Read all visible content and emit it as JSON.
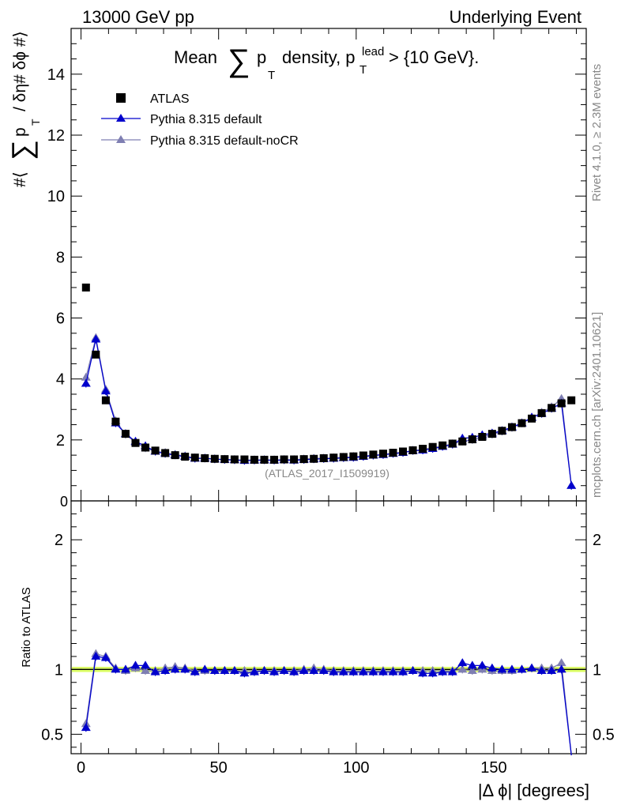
{
  "header": {
    "left": "13000 GeV pp",
    "right": "Underlying Event"
  },
  "side": {
    "rivet": "Rivet 4.1.0, ≥ 2.3M events",
    "mcplots": "mcplots.cern.ch [arXiv:2401.10621]"
  },
  "analysis_id": "(ATLAS_2017_I1509919)",
  "colors": {
    "data": "#000000",
    "pythia_default": "#0000cc",
    "pythia_nocr": "#7f7fb2",
    "band": "#ddff66"
  },
  "chart_data": {
    "type": "line",
    "title": {
      "pre": "Mean",
      "sum": "∑",
      "p": "p",
      "p_sub": "T",
      "mid": "density, p",
      "lead": "lead",
      "lead_sub": "T",
      "post": "> {10 GeV}."
    },
    "ylabel": {
      "a": "#⟨",
      "sum": "∑",
      "p": "p",
      "p_sub": "T",
      "b": "/ δη# δϕ #⟩"
    },
    "ratio_ylabel": "Ratio to ATLAS",
    "xlabel": "|Δ ϕ| [degrees]",
    "xlim": [
      -3.6,
      183.6
    ],
    "ylim": [
      0,
      15.5
    ],
    "ratio_ylim": [
      0.35,
      2.3
    ],
    "xticks": [
      0,
      50,
      100,
      150
    ],
    "yticks": [
      2,
      4,
      6,
      8,
      10,
      12,
      14
    ],
    "ytick_labels": [
      "2",
      "4",
      "6",
      "8",
      "10",
      "12",
      "14"
    ],
    "ytick_partial_label": "0",
    "ratio_yticks": [
      0.5,
      1,
      2
    ],
    "ratio_ytick_labels": [
      "0.5",
      "1",
      "2"
    ],
    "legend": {
      "position": "top-left",
      "entries": [
        "ATLAS",
        "Pythia 8.315 default",
        "Pythia 8.315 default-noCR"
      ]
    },
    "x": [
      1.8,
      5.4,
      9,
      12.6,
      16.2,
      19.8,
      23.4,
      27,
      30.6,
      34.2,
      37.8,
      41.4,
      45,
      48.6,
      52.2,
      55.8,
      59.4,
      63,
      66.6,
      70.2,
      73.8,
      77.4,
      81,
      84.6,
      88.2,
      91.8,
      95.4,
      99,
      102.6,
      106.2,
      109.8,
      113.4,
      117,
      120.6,
      124.2,
      127.8,
      131.4,
      135,
      138.6,
      142.2,
      145.8,
      149.4,
      153,
      156.6,
      160.2,
      163.8,
      167.4,
      171,
      174.6,
      178.2
    ],
    "series": [
      {
        "name": "ATLAS",
        "values": [
          7.0,
          4.8,
          3.3,
          2.6,
          2.2,
          1.9,
          1.75,
          1.65,
          1.57,
          1.5,
          1.45,
          1.42,
          1.4,
          1.38,
          1.37,
          1.36,
          1.36,
          1.35,
          1.35,
          1.35,
          1.36,
          1.36,
          1.37,
          1.38,
          1.4,
          1.42,
          1.44,
          1.46,
          1.49,
          1.52,
          1.55,
          1.58,
          1.62,
          1.66,
          1.71,
          1.77,
          1.82,
          1.88,
          1.95,
          2.02,
          2.1,
          2.2,
          2.3,
          2.42,
          2.55,
          2.7,
          2.88,
          3.05,
          3.2,
          3.3
        ]
      },
      {
        "name": "Pythia 8.315 default",
        "values": [
          3.85,
          5.3,
          3.6,
          2.55,
          2.2,
          1.95,
          1.8,
          1.62,
          1.55,
          1.5,
          1.45,
          1.39,
          1.4,
          1.37,
          1.35,
          1.34,
          1.32,
          1.33,
          1.34,
          1.33,
          1.34,
          1.33,
          1.35,
          1.37,
          1.38,
          1.39,
          1.41,
          1.42,
          1.45,
          1.49,
          1.51,
          1.55,
          1.58,
          1.65,
          1.66,
          1.71,
          1.78,
          1.85,
          2.05,
          2.08,
          2.16,
          2.22,
          2.3,
          2.42,
          2.55,
          2.74,
          2.86,
          3.03,
          3.2,
          0.5
        ]
      },
      {
        "name": "Pythia 8.315 default-noCR",
        "values": [
          4.05,
          5.35,
          3.65,
          2.62,
          2.18,
          1.92,
          1.73,
          1.63,
          1.58,
          1.52,
          1.47,
          1.41,
          1.39,
          1.37,
          1.36,
          1.35,
          1.34,
          1.34,
          1.34,
          1.34,
          1.35,
          1.35,
          1.37,
          1.39,
          1.4,
          1.41,
          1.43,
          1.45,
          1.47,
          1.5,
          1.53,
          1.56,
          1.6,
          1.64,
          1.69,
          1.75,
          1.8,
          1.87,
          1.95,
          2.0,
          2.1,
          2.18,
          2.28,
          2.4,
          2.55,
          2.72,
          2.9,
          3.08,
          3.35,
          0.5
        ]
      }
    ],
    "ratio_series": [
      {
        "name": "Pythia 8.315 default",
        "values": [
          0.55,
          1.1,
          1.09,
          1.0,
          1.0,
          1.03,
          1.03,
          0.98,
          0.99,
          1.0,
          1.0,
          0.98,
          1.0,
          0.99,
          0.99,
          0.99,
          0.97,
          0.98,
          0.99,
          0.98,
          0.99,
          0.98,
          0.99,
          0.99,
          0.99,
          0.98,
          0.98,
          0.98,
          0.98,
          0.98,
          0.98,
          0.98,
          0.98,
          0.99,
          0.97,
          0.97,
          0.98,
          0.98,
          1.05,
          1.03,
          1.03,
          1.01,
          1.0,
          1.0,
          1.0,
          1.01,
          0.99,
          0.99,
          1.0,
          0.15
        ]
      },
      {
        "name": "Pythia 8.315 default-noCR",
        "values": [
          0.58,
          1.12,
          1.1,
          1.01,
          0.99,
          1.01,
          0.99,
          0.99,
          1.01,
          1.02,
          1.01,
          0.99,
          0.99,
          0.99,
          0.99,
          0.99,
          0.99,
          0.99,
          0.99,
          0.99,
          0.99,
          0.99,
          1.0,
          1.01,
          1.0,
          0.99,
          0.99,
          0.99,
          0.99,
          0.99,
          0.99,
          0.99,
          0.99,
          0.99,
          0.99,
          0.99,
          0.99,
          0.99,
          1.0,
          0.99,
          1.0,
          0.99,
          0.99,
          0.99,
          1.0,
          1.01,
          1.01,
          1.01,
          1.05,
          0.15
        ]
      }
    ]
  }
}
